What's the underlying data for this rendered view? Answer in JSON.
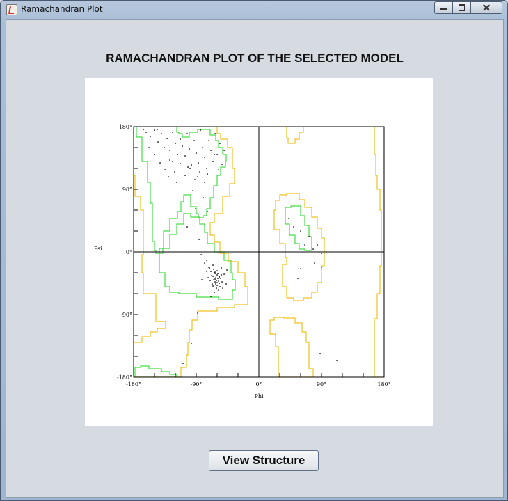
{
  "window": {
    "title": "Ramachandran Plot",
    "icon": "java-cup-icon"
  },
  "heading": "RAMACHANDRAN PLOT OF THE SELECTED MODEL",
  "view_button_label": "View Structure",
  "colors": {
    "core_region": "#44dd44",
    "allowed_region": "#f0c020",
    "points": "#000000",
    "background": "#ffffff"
  },
  "chart_data": {
    "type": "scatter",
    "xlabel": "Phi",
    "ylabel": "Psi",
    "xlim": [
      -180,
      180
    ],
    "ylim": [
      -180,
      180
    ],
    "xticks": [
      {
        "value": -180,
        "label": "-180°"
      },
      {
        "value": -90,
        "label": "-90°"
      },
      {
        "value": 0,
        "label": "0°"
      },
      {
        "value": 90,
        "label": "90°"
      },
      {
        "value": 180,
        "label": "180°"
      }
    ],
    "yticks": [
      {
        "value": 180,
        "label": "180°"
      },
      {
        "value": 90,
        "label": "90°"
      },
      {
        "value": 0,
        "label": "0°"
      },
      {
        "value": -90,
        "label": "-90°"
      },
      {
        "value": -180,
        "label": "-180°"
      }
    ],
    "regions": [
      {
        "name": "core",
        "color": "#44dd44",
        "points": [
          [
            -170,
            180
          ],
          [
            -118,
            180
          ],
          [
            -115,
            172
          ],
          [
            -110,
            170
          ],
          [
            -100,
            165
          ],
          [
            -88,
            172
          ],
          [
            -70,
            176
          ],
          [
            -62,
            168
          ],
          [
            -58,
            160
          ],
          [
            -52,
            150
          ],
          [
            -47,
            140
          ],
          [
            -48,
            130
          ],
          [
            -55,
            122
          ],
          [
            -60,
            110
          ],
          [
            -65,
            95
          ],
          [
            -70,
            78
          ],
          [
            -75,
            62
          ],
          [
            -80,
            52
          ],
          [
            -87,
            49
          ],
          [
            -90,
            55
          ],
          [
            -98,
            65
          ],
          [
            -108,
            82
          ],
          [
            -112,
            72
          ],
          [
            -117,
            58
          ],
          [
            -128,
            48
          ],
          [
            -137,
            30
          ],
          [
            -143,
            5
          ],
          [
            -135,
            -30
          ],
          [
            -128,
            -50
          ],
          [
            -115,
            -58
          ],
          [
            -90,
            -60
          ],
          [
            -58,
            -65
          ],
          [
            -38,
            -68
          ],
          [
            -34,
            -55
          ],
          [
            -38,
            -40
          ],
          [
            -40,
            -30
          ],
          [
            -50,
            -12
          ],
          [
            -64,
            0
          ],
          [
            -74,
            12
          ],
          [
            -78,
            28
          ],
          [
            -85,
            40
          ],
          [
            -98,
            50
          ],
          [
            -108,
            55
          ],
          [
            -118,
            40
          ],
          [
            -128,
            25
          ],
          [
            -138,
            5
          ],
          [
            -148,
            -2
          ],
          [
            -150,
            2
          ],
          [
            -153,
            15
          ],
          [
            -153,
            40
          ],
          [
            -156,
            70
          ],
          [
            -160,
            100
          ],
          [
            -168,
            130
          ],
          [
            -176,
            165
          ]
        ]
      },
      {
        "name": "core-beta-bottom",
        "color": "#44dd44",
        "points": [
          [
            -178,
            -180
          ],
          [
            -178,
            -170
          ],
          [
            -170,
            -166
          ],
          [
            -158,
            -164
          ],
          [
            -140,
            -168
          ],
          [
            -128,
            -172
          ],
          [
            -118,
            -176
          ],
          [
            -112,
            -180
          ]
        ]
      },
      {
        "name": "core-alphaL",
        "color": "#44dd44",
        "points": [
          [
            38,
            55
          ],
          [
            46,
            64
          ],
          [
            60,
            66
          ],
          [
            66,
            52
          ],
          [
            72,
            38
          ],
          [
            76,
            22
          ],
          [
            76,
            4
          ],
          [
            66,
            2
          ],
          [
            58,
            4
          ],
          [
            52,
            12
          ],
          [
            44,
            24
          ],
          [
            38,
            40
          ]
        ]
      },
      {
        "name": "allowed",
        "color": "#f0c020",
        "points": [
          [
            -180,
            180
          ],
          [
            -60,
            180
          ],
          [
            -55,
            170
          ],
          [
            -45,
            162
          ],
          [
            -38,
            150
          ],
          [
            -35,
            120
          ],
          [
            -42,
            98
          ],
          [
            -52,
            80
          ],
          [
            -64,
            55
          ],
          [
            -70,
            42
          ],
          [
            -64,
            24
          ],
          [
            -56,
            14
          ],
          [
            -44,
            -2
          ],
          [
            -30,
            -14
          ],
          [
            -20,
            -30
          ],
          [
            -16,
            -50
          ],
          [
            -16,
            -72
          ],
          [
            -35,
            -76
          ],
          [
            -60,
            -80
          ],
          [
            -88,
            -85
          ],
          [
            -96,
            -98
          ],
          [
            -100,
            -112
          ],
          [
            -102,
            -130
          ],
          [
            -104,
            -148
          ],
          [
            -112,
            -166
          ],
          [
            -110,
            -180
          ],
          [
            -180,
            -180
          ],
          [
            -182,
            -150
          ],
          [
            -168,
            -130
          ],
          [
            -156,
            -122
          ],
          [
            -146,
            -115
          ],
          [
            -134,
            -110
          ],
          [
            -148,
            -100
          ],
          [
            -166,
            -60
          ],
          [
            -168,
            -30
          ],
          [
            -166,
            -4
          ],
          [
            -166,
            20
          ],
          [
            -170,
            60
          ],
          [
            -178,
            80
          ],
          [
            -182,
            110
          ],
          [
            -180,
            150
          ]
        ]
      },
      {
        "name": "allowed-alphaL",
        "color": "#f0c020",
        "points": [
          [
            24,
            60
          ],
          [
            30,
            74
          ],
          [
            40,
            82
          ],
          [
            58,
            84
          ],
          [
            66,
            75
          ],
          [
            76,
            64
          ],
          [
            84,
            50
          ],
          [
            90,
            34
          ],
          [
            94,
            20
          ],
          [
            94,
            0
          ],
          [
            90,
            -20
          ],
          [
            84,
            -44
          ],
          [
            76,
            -58
          ],
          [
            64,
            -66
          ],
          [
            50,
            -70
          ],
          [
            40,
            -66
          ],
          [
            34,
            -50
          ],
          [
            34,
            -34
          ],
          [
            40,
            -18
          ],
          [
            38,
            -8
          ],
          [
            30,
            12
          ],
          [
            22,
            32
          ]
        ]
      },
      {
        "name": "allowed-bottom",
        "color": "#f0c020",
        "points": [
          [
            28,
            -180
          ],
          [
            28,
            -160
          ],
          [
            24,
            -136
          ],
          [
            16,
            -118
          ],
          [
            16,
            -104
          ],
          [
            22,
            -98
          ],
          [
            36,
            -94
          ],
          [
            52,
            -95
          ],
          [
            62,
            -102
          ],
          [
            68,
            -115
          ],
          [
            72,
            -130
          ],
          [
            72,
            -150
          ],
          [
            78,
            -168
          ],
          [
            80,
            -180
          ]
        ]
      },
      {
        "name": "allowed-top-mid",
        "color": "#f0c020",
        "points": [
          [
            40,
            180
          ],
          [
            42,
            164
          ],
          [
            52,
            156
          ],
          [
            58,
            162
          ],
          [
            64,
            172
          ],
          [
            66,
            180
          ]
        ]
      },
      {
        "name": "allowed-right-edge",
        "color": "#f0c020",
        "points": [
          [
            180,
            -180
          ],
          [
            180,
            180
          ],
          [
            166,
            180
          ],
          [
            168,
            140
          ],
          [
            170,
            110
          ],
          [
            174,
            90
          ],
          [
            176,
            60
          ],
          [
            176,
            20
          ],
          [
            174,
            -20
          ],
          [
            170,
            -60
          ],
          [
            166,
            -96
          ],
          [
            166,
            -140
          ],
          [
            168,
            -180
          ]
        ]
      }
    ],
    "series": [
      {
        "points": [
          [
            -162,
            172
          ],
          [
            -156,
            166
          ],
          [
            -150,
            175
          ],
          [
            -145,
            158
          ],
          [
            -140,
            170
          ],
          [
            -136,
            150
          ],
          [
            -132,
            163
          ],
          [
            -128,
            146
          ],
          [
            -124,
            172
          ],
          [
            -120,
            156
          ],
          [
            -117,
            140
          ],
          [
            -113,
            162
          ],
          [
            -110,
            152
          ],
          [
            -106,
            138
          ],
          [
            -103,
            170
          ],
          [
            -100,
            148
          ],
          [
            -97,
            125
          ],
          [
            -93,
            160
          ],
          [
            -90,
            142
          ],
          [
            -87,
            128
          ],
          [
            -84,
            175
          ],
          [
            -81,
            150
          ],
          [
            -78,
            136
          ],
          [
            -75,
            120
          ],
          [
            -72,
            160
          ],
          [
            -69,
            146
          ],
          [
            -66,
            130
          ],
          [
            -63,
            170
          ],
          [
            -60,
            140
          ],
          [
            -56,
            156
          ],
          [
            -53,
            126
          ],
          [
            -50,
            146
          ],
          [
            -150,
            140
          ],
          [
            -142,
            128
          ],
          [
            -135,
            118
          ],
          [
            -128,
            132
          ],
          [
            -121,
            115
          ],
          [
            -113,
            127
          ],
          [
            -106,
            110
          ],
          [
            -99,
            120
          ],
          [
            -92,
            104
          ],
          [
            -85,
            115
          ],
          [
            -78,
            100
          ],
          [
            -158,
            150
          ],
          [
            -166,
            176
          ],
          [
            -146,
            176
          ],
          [
            -124,
            130
          ],
          [
            -102,
            122
          ],
          [
            -88,
            108
          ],
          [
            -74,
            112
          ],
          [
            -64,
            140
          ],
          [
            -58,
            118
          ],
          [
            -118,
            100
          ],
          [
            -95,
            88
          ],
          [
            -80,
            78
          ],
          [
            -130,
            108
          ],
          [
            -91,
            62
          ],
          [
            -74,
            58
          ],
          [
            -103,
            36
          ],
          [
            -86,
            18
          ],
          [
            -83,
            -4
          ],
          [
            -75,
            -12
          ],
          [
            -72,
            -22
          ],
          [
            -69,
            -28
          ],
          [
            -66,
            -19
          ],
          [
            -63,
            -31
          ],
          [
            -60,
            -27
          ],
          [
            -57,
            -35
          ],
          [
            -54,
            -23
          ],
          [
            -65,
            -40
          ],
          [
            -62,
            -46
          ],
          [
            -59,
            -38
          ],
          [
            -56,
            -50
          ],
          [
            -63,
            -43
          ],
          [
            -66,
            -35
          ],
          [
            -60,
            -33
          ],
          [
            -58,
            -42
          ],
          [
            -61,
            -52
          ],
          [
            -64,
            -30
          ],
          [
            -67,
            -46
          ],
          [
            -55,
            -38
          ],
          [
            -70,
            -41
          ],
          [
            -57,
            -45
          ],
          [
            -62,
            -37
          ],
          [
            -65,
            -25
          ],
          [
            -68,
            -34
          ],
          [
            -53,
            -43
          ],
          [
            -60,
            -48
          ],
          [
            -63,
            -29
          ],
          [
            -59,
            -31
          ],
          [
            -54,
            -33
          ],
          [
            -71,
            -23
          ],
          [
            -75,
            -28
          ],
          [
            -73,
            -37
          ],
          [
            -50,
            -32
          ],
          [
            -47,
            -46
          ],
          [
            -52,
            -52
          ],
          [
            -64,
            -58
          ],
          [
            -69,
            -64
          ],
          [
            -58,
            -55
          ],
          [
            -78,
            -16
          ],
          [
            -46,
            -26
          ],
          [
            -82,
            -40
          ],
          [
            -66,
            -49
          ],
          [
            -61,
            -41
          ],
          [
            -57,
            -36
          ],
          [
            -60,
            -44
          ],
          [
            -63,
            -39
          ],
          [
            -88,
            -88
          ],
          [
            -97,
            -132
          ],
          [
            -109,
            -160
          ],
          [
            43,
            48
          ],
          [
            50,
            36
          ],
          [
            60,
            30
          ],
          [
            72,
            22
          ],
          [
            66,
            10
          ],
          [
            78,
            4
          ],
          [
            84,
            10
          ],
          [
            90,
            -2
          ],
          [
            80,
            -16
          ],
          [
            60,
            -24
          ],
          [
            56,
            -38
          ],
          [
            90,
            -22
          ],
          [
            88,
            -146
          ],
          [
            112,
            -156
          ]
        ]
      }
    ]
  }
}
